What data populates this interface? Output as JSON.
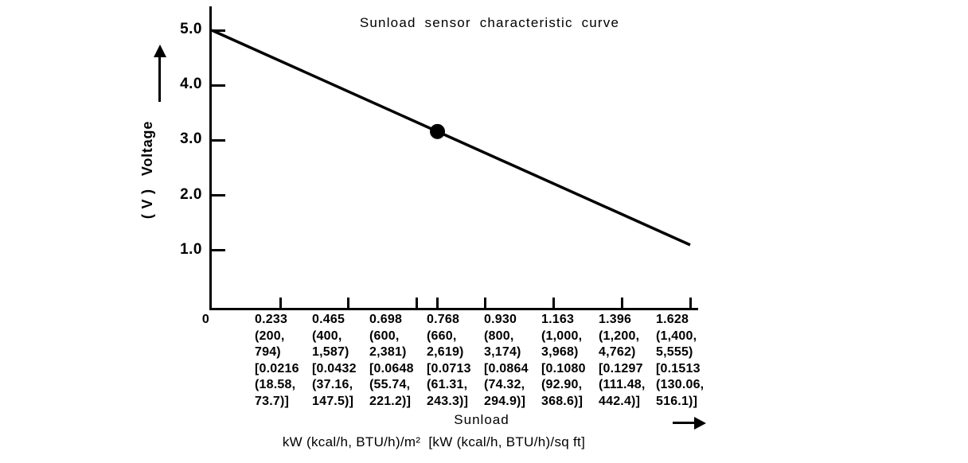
{
  "colors": {
    "ink": "#000000",
    "background": "#ffffff"
  },
  "chart_data": {
    "type": "line",
    "title": "Sunload sensor characteristic curve",
    "grid": false,
    "legend": "none",
    "x_axis": {
      "label": "Sunload",
      "units_label": "kW (kcal/h, BTU/h)/m²  [kW (kcal/h, BTU/h)/sq ft]",
      "xlim": [
        0,
        1.628
      ],
      "ticks": [
        {
          "value": 0,
          "lines": [
            "0"
          ]
        },
        {
          "value": 0.233,
          "lines": [
            "0.233",
            "(200,",
            "794)",
            "[0.0216",
            "(18.58,",
            "73.7)]"
          ]
        },
        {
          "value": 0.465,
          "lines": [
            "0.465",
            "(400,",
            "1,587)",
            "[0.0432",
            "(37.16,",
            "147.5)]"
          ]
        },
        {
          "value": 0.698,
          "lines": [
            "0.698",
            "(600,",
            "2,381)",
            "[0.0648",
            "(55.74,",
            "221.2)]"
          ]
        },
        {
          "value": 0.768,
          "lines": [
            "0.768",
            "(660,",
            "2,619)",
            "[0.0713",
            "(61.31,",
            "243.3)]"
          ]
        },
        {
          "value": 0.93,
          "lines": [
            "0.930",
            "(800,",
            "3,174)",
            "[0.0864",
            "(74.32,",
            "294.9)]"
          ]
        },
        {
          "value": 1.163,
          "lines": [
            "1.163",
            "(1,000,",
            "3,968)",
            "[0.1080",
            "(92.90,",
            "368.6)]"
          ]
        },
        {
          "value": 1.396,
          "lines": [
            "1.396",
            "(1,200,",
            "4,762)",
            "[0.1297",
            "(111.48,",
            "442.4)]"
          ]
        },
        {
          "value": 1.628,
          "lines": [
            "1.628",
            "(1,400,",
            "5,555)",
            "[0.1513",
            "(130.06,",
            "516.1)]"
          ]
        }
      ]
    },
    "y_axis": {
      "label": "Voltage",
      "units": "( V )",
      "ylim": [
        0,
        5.4
      ],
      "ticks": [
        {
          "value": 5.0,
          "label": "5.0"
        },
        {
          "value": 4.0,
          "label": "4.0"
        },
        {
          "value": 3.0,
          "label": "3.0"
        },
        {
          "value": 2.0,
          "label": "2.0"
        },
        {
          "value": 1.0,
          "label": "1.0"
        }
      ]
    },
    "series": [
      {
        "name": "Sunload sensor characteristic",
        "x": [
          0,
          1.628
        ],
        "v": [
          5.0,
          1.1
        ]
      }
    ],
    "marked_point": {
      "x": 0.768,
      "v": 3.1
    }
  }
}
